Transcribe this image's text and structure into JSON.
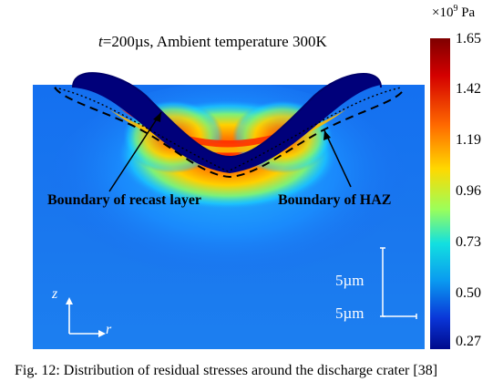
{
  "figure": {
    "title_prefix": "t",
    "title_rest": "=200µs, Ambient temperature 300K",
    "unit_multiplier": "×10",
    "unit_exponent": "9",
    "unit_suffix": " Pa",
    "colorbar_ticks": [
      "1.65",
      "1.42",
      "1.19",
      "0.96",
      "0.73",
      "0.50",
      "0.27"
    ],
    "colorbar_min": 0.27,
    "colorbar_max": 1.65,
    "annotations": {
      "recast": "Boundary of recast layer",
      "haz": "Boundary of HAZ"
    },
    "scale_bar_vertical": "5µm",
    "scale_bar_horizontal": "5µm",
    "axis_vertical": "z",
    "axis_horizontal": "r",
    "caption": "Fig. 12: Distribution of residual stresses around the discharge crater [38]"
  }
}
